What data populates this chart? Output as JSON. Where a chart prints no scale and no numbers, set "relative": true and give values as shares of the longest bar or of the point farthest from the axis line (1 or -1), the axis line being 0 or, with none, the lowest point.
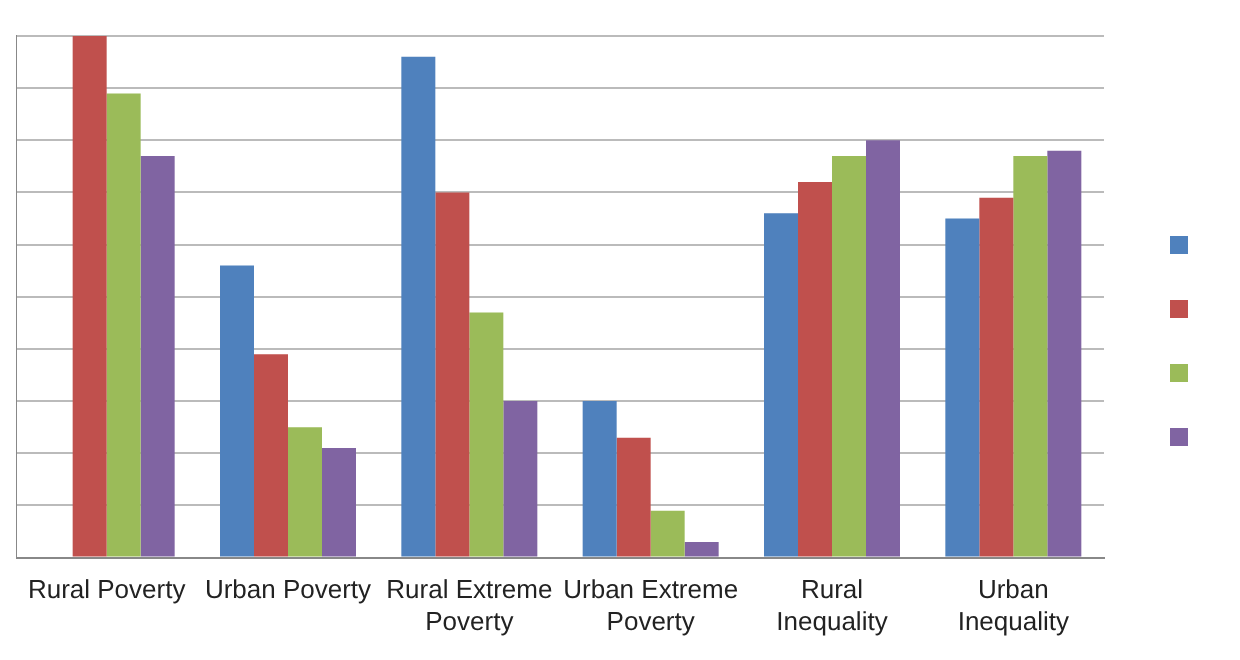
{
  "chart_data": {
    "type": "bar",
    "relative": true,
    "grid": "y",
    "legend": false,
    "categories": [
      "Rural Poverty",
      "Urban Poverty",
      "Rural Extreme Poverty",
      "Urban Extreme Poverty",
      "Rural Inequality",
      "Urban Inequality"
    ],
    "series": [
      {
        "color": "#4f81bd",
        "values": [
          null,
          0.56,
          0.96,
          0.3,
          0.66,
          0.65
        ]
      },
      {
        "color": "#c0504d",
        "values": [
          1,
          0.39,
          0.7,
          0.23,
          0.72,
          0.69
        ]
      },
      {
        "color": "#9bbb59",
        "values": [
          0.89,
          0.25,
          0.47,
          0.09,
          0.77,
          0.77
        ]
      },
      {
        "color": "#8064a2",
        "values": [
          0.77,
          0.21,
          0.3,
          0.03,
          0.8,
          0.78
        ]
      }
    ]
  }
}
